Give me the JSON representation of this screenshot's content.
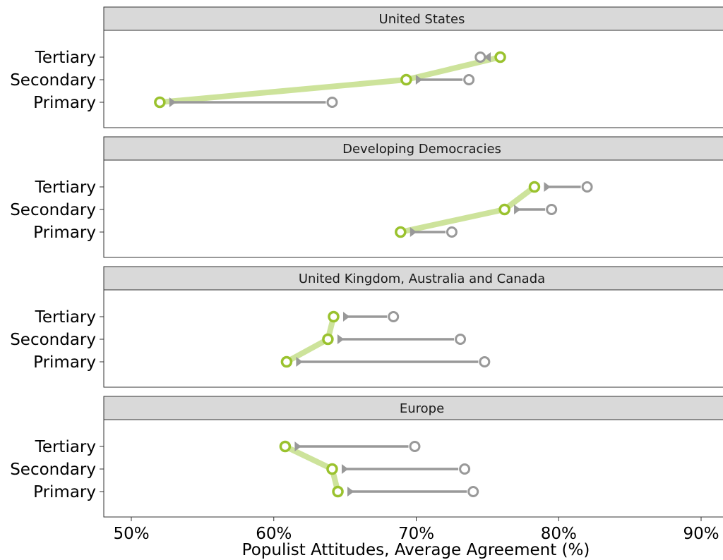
{
  "colors": {
    "change_line": "#9ac22e",
    "change_line_light": "#cde39b",
    "baseline": "#999999",
    "strip_bg": "#d9d9d9",
    "panel_border": "#333333"
  },
  "chart_data": {
    "type": "dumbbell-arrow-faceted",
    "xlabel": "Populist Attitudes, Average Agreement (%)",
    "xlim": [
      48,
      92
    ],
    "xticks": [
      {
        "value": 50,
        "label": "50%"
      },
      {
        "value": 60,
        "label": "60%"
      },
      {
        "value": 70,
        "label": "70%"
      },
      {
        "value": 80,
        "label": "80%"
      },
      {
        "value": 90,
        "label": "90%"
      }
    ],
    "categories": [
      "Tertiary",
      "Secondary",
      "Primary"
    ],
    "panels": [
      {
        "title": "United States",
        "points": [
          {
            "category": "Tertiary",
            "from": 74.5,
            "to": 75.9
          },
          {
            "category": "Secondary",
            "from": 73.7,
            "to": 69.3
          },
          {
            "category": "Primary",
            "from": 64.1,
            "to": 52.0
          }
        ]
      },
      {
        "title": "Developing Democracies",
        "points": [
          {
            "category": "Tertiary",
            "from": 82.0,
            "to": 78.3
          },
          {
            "category": "Secondary",
            "from": 79.5,
            "to": 76.2
          },
          {
            "category": "Primary",
            "from": 72.5,
            "to": 68.9
          }
        ]
      },
      {
        "title": "United Kingdom, Australia and Canada",
        "points": [
          {
            "category": "Tertiary",
            "from": 68.4,
            "to": 64.2
          },
          {
            "category": "Secondary",
            "from": 73.1,
            "to": 63.8
          },
          {
            "category": "Primary",
            "from": 74.8,
            "to": 60.9
          }
        ]
      },
      {
        "title": "Europe",
        "points": [
          {
            "category": "Tertiary",
            "from": 69.9,
            "to": 60.8
          },
          {
            "category": "Secondary",
            "from": 73.4,
            "to": 64.1
          },
          {
            "category": "Primary",
            "from": 74.0,
            "to": 64.5
          }
        ]
      }
    ]
  }
}
